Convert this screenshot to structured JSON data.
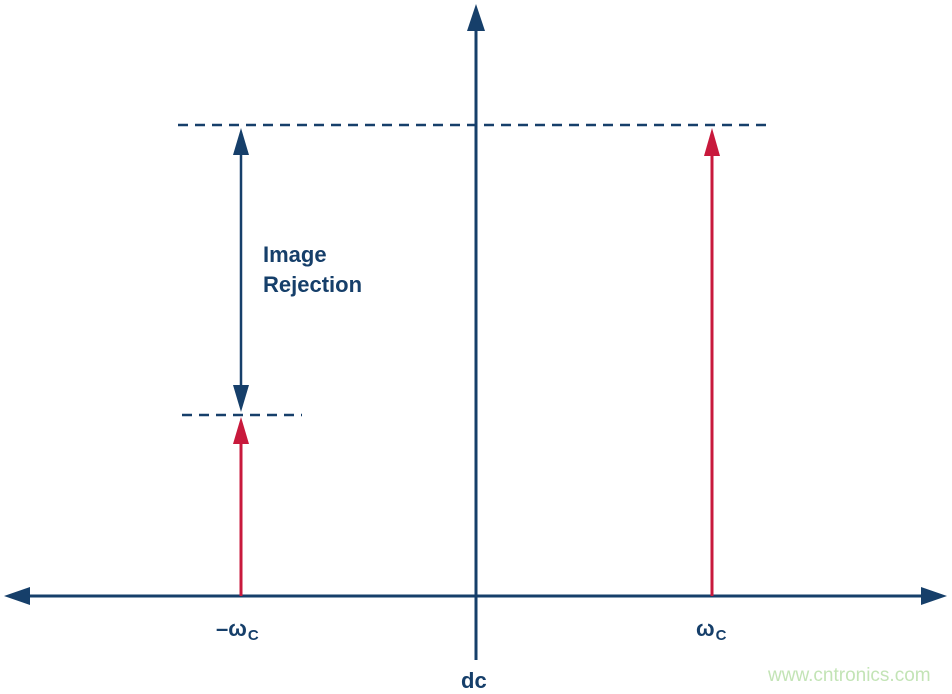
{
  "colors": {
    "axis": "#163f6a",
    "signal": "#c8193c",
    "watermark": "#c3e4b6"
  },
  "labels": {
    "annotation_line1": "Image",
    "annotation_line2": "Rejection",
    "neg_freq_main": "–ω",
    "neg_freq_sub": "C",
    "pos_freq_main": "ω",
    "pos_freq_sub": "C",
    "origin": "dc"
  },
  "watermark": "www.cntronics.com"
}
